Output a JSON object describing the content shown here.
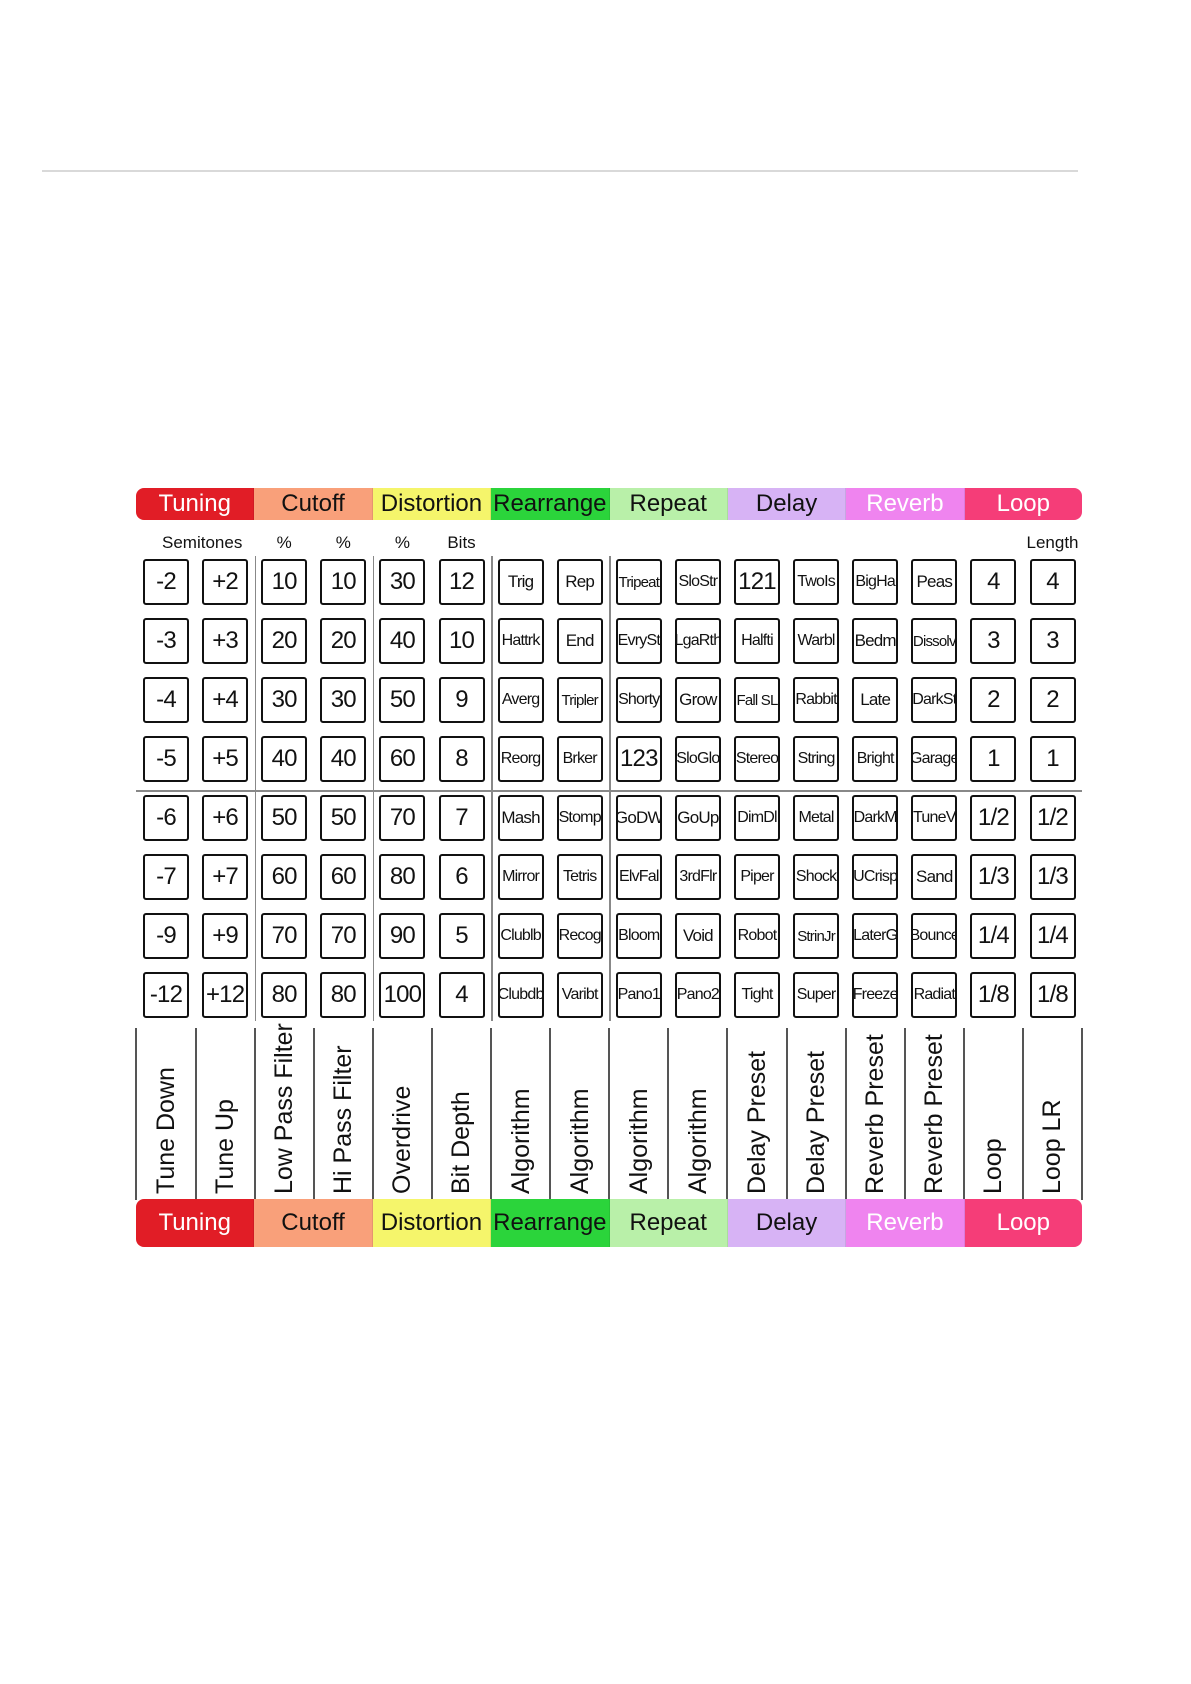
{
  "categories": [
    {
      "label": "Tuning",
      "color": "#e11d26",
      "text_color": "#ffffff"
    },
    {
      "label": "Cutoff",
      "color": "#f9a07a",
      "text_color": "#111111"
    },
    {
      "label": "Distortion",
      "color": "#f5f56b",
      "text_color": "#111111"
    },
    {
      "label": "Rearrange",
      "color": "#2bd43b",
      "text_color": "#111111"
    },
    {
      "label": "Repeat",
      "color": "#b9f0a9",
      "text_color": "#111111"
    },
    {
      "label": "Delay",
      "color": "#d7b3f5",
      "text_color": "#111111"
    },
    {
      "label": "Reverb",
      "color": "#ef84ef",
      "text_color": "#ffffff"
    },
    {
      "label": "Loop",
      "color": "#f53d78",
      "text_color": "#ffffff"
    }
  ],
  "unit_labels": [
    "Semitones",
    "",
    "%",
    "%",
    "%",
    "Bits",
    "",
    "",
    "",
    "",
    "",
    "",
    "",
    "",
    "",
    "Length"
  ],
  "grid_rows": [
    [
      "-2",
      "+2",
      "10",
      "10",
      "30",
      "12",
      "Trig",
      "Rep",
      "Tripeat",
      "SloStr",
      "121",
      "TwoIs",
      "BigHa",
      "Peas",
      "4",
      "4"
    ],
    [
      "-3",
      "+3",
      "20",
      "20",
      "40",
      "10",
      "Hattrk",
      "End",
      "EvrySt",
      "LgaRth",
      "Halfti",
      "Warbl",
      "Bedm",
      "Dissolv",
      "3",
      "3"
    ],
    [
      "-4",
      "+4",
      "30",
      "30",
      "50",
      "9",
      "Averg",
      "Tripler",
      "Shorty",
      "Grow",
      "Fall SL",
      "Rabbit",
      "Late",
      "DarkSt",
      "2",
      "2"
    ],
    [
      "-5",
      "+5",
      "40",
      "40",
      "60",
      "8",
      "Reorg",
      "Brker",
      "123",
      "SloGlo",
      "Stereo",
      "String",
      "Bright",
      "Garage",
      "1",
      "1"
    ],
    [
      "-6",
      "+6",
      "50",
      "50",
      "70",
      "7",
      "Mash",
      "Stomp",
      "GoDW",
      "GoUp",
      "DimDl",
      "Metal",
      "DarkM",
      "TuneV",
      "1/2",
      "1/2"
    ],
    [
      "-7",
      "+7",
      "60",
      "60",
      "80",
      "6",
      "Mirror",
      "Tetris",
      "ElvFal",
      "3rdFlr",
      "Piper",
      "Shock",
      "UCrisp",
      "Sand",
      "1/3",
      "1/3"
    ],
    [
      "-9",
      "+9",
      "70",
      "70",
      "90",
      "5",
      "Clublb",
      "Recog",
      "Bloom",
      "Void",
      "Robot",
      "StrinJr",
      "LaterG",
      "Bounce",
      "1/4",
      "1/4"
    ],
    [
      "-12",
      "+12",
      "80",
      "80",
      "100",
      "4",
      "Clubdb",
      "Varibt",
      "Pano1",
      "Pano2",
      "Tight",
      "Super",
      "Freeze",
      "Radiat",
      "1/8",
      "1/8"
    ]
  ],
  "column_labels": [
    "Tune Down",
    "Tune Up",
    "Low Pass Filter",
    "Hi Pass Filter",
    "Overdrive",
    "Bit Depth",
    "Algorithm",
    "Algorithm",
    "Algorithm",
    "Algorithm",
    "Delay Preset",
    "Delay Preset",
    "Reverb Preset",
    "Reverb Preset",
    "Loop",
    "Loop LR"
  ]
}
